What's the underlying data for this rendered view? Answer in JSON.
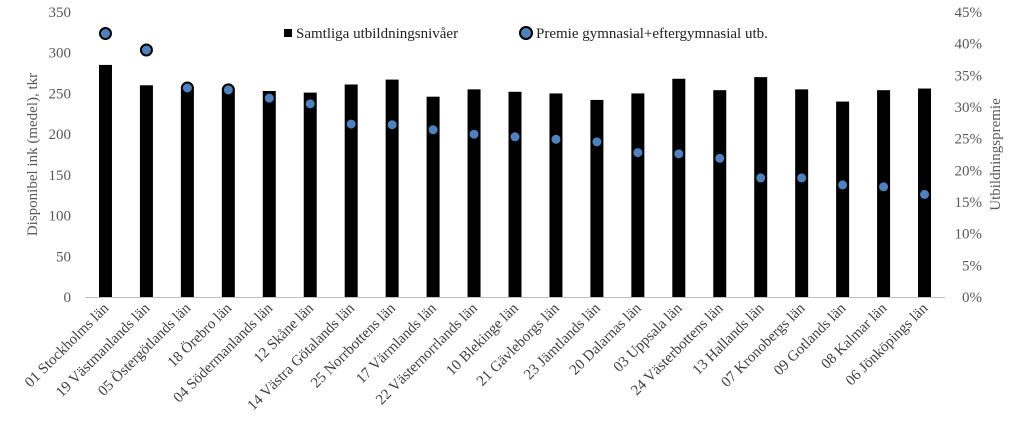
{
  "chart_data": {
    "type": "bar",
    "categories": [
      "01 Stockholms län",
      "19 Västmanlands län",
      "05 Östergötlands län",
      "18 Örebro län",
      "04 Södermanlands län",
      "12 Skåne län",
      "14 Västra Götalands län",
      "25 Norrbottens län",
      "17 Värmlands län",
      "22 Västernorrlands län",
      "10 Blekinge län",
      "21 Gävleborgs län",
      "23 Jämtlands län",
      "20 Dalarnas län",
      "03 Uppsala län",
      "24 Västerbottens län",
      "13 Hallands län",
      "07 Kronobergs län",
      "09 Gotlands län",
      "08 Kalmar län",
      "06 Jönköpings län"
    ],
    "series": [
      {
        "name": "Samtliga utbildningsnivåer",
        "type": "bar",
        "axis": "left",
        "color": "#000000",
        "values": [
          285,
          260,
          258,
          255,
          253,
          251,
          261,
          267,
          246,
          255,
          252,
          250,
          242,
          250,
          268,
          254,
          270,
          255,
          240,
          254,
          256
        ]
      },
      {
        "name": "Premie gymnasial+eftergymnasial utb.",
        "type": "scatter",
        "axis": "right",
        "color": "#4f81bd",
        "values": [
          41.6,
          39.0,
          33.0,
          32.7,
          31.4,
          30.5,
          27.3,
          27.2,
          26.4,
          25.7,
          25.3,
          24.9,
          24.5,
          22.8,
          22.6,
          21.9,
          18.8,
          18.8,
          17.7,
          17.4,
          16.2
        ]
      }
    ],
    "ylabel": "Disponibel ink (medel), tkr",
    "ylim": [
      0,
      350
    ],
    "yticks": [
      0,
      50,
      100,
      150,
      200,
      250,
      300,
      350
    ],
    "y2label": "Utbildningspremie",
    "y2lim": [
      0,
      45
    ],
    "y2ticks": [
      "0%",
      "5%",
      "10%",
      "15%",
      "20%",
      "25%",
      "30%",
      "35%",
      "40%",
      "45%"
    ],
    "legend_position": "top",
    "grid": false
  }
}
